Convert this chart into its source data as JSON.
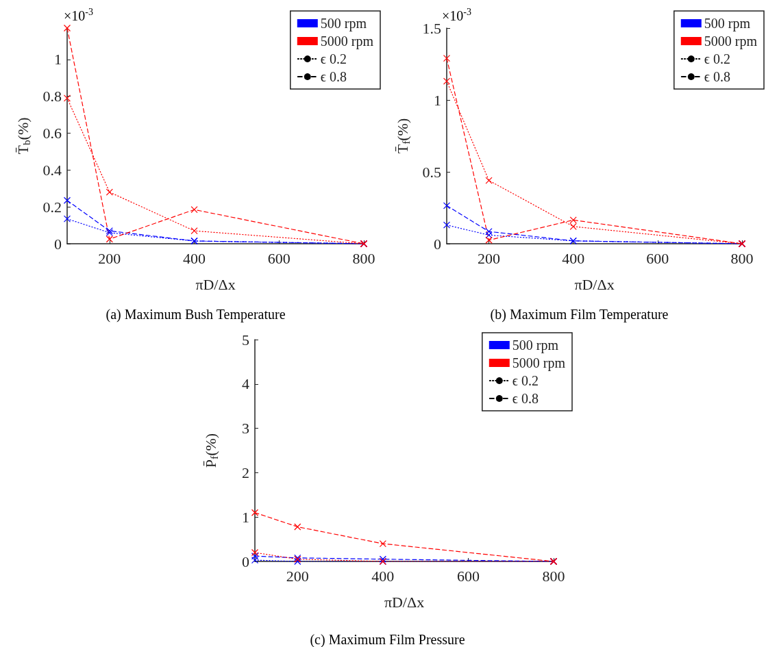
{
  "chart_data": [
    {
      "type": "line",
      "title": "(a) Maximum Bush Temperature",
      "xlabel": "πD/Δx",
      "ylabel": "T̄$_{b}$(%)",
      "annotations": [
        "×10$^{-3}$"
      ],
      "x": [
        100,
        200,
        400,
        800
      ],
      "xlim": [
        100,
        800
      ],
      "xticks": [
        200,
        400,
        600,
        800
      ],
      "ylim": [
        0,
        1.17
      ],
      "yticks": [
        0,
        0.2,
        0.4,
        0.6,
        0.8,
        1
      ],
      "grid": false,
      "legend": "top right",
      "series": [
        {
          "color": "#0000ff",
          "line_style": "dashed",
          "marker": "cross",
          "values": [
            0.235,
            0.07,
            0.015,
            0
          ]
        },
        {
          "color": "#0000ff",
          "line_style": "dotted",
          "marker": "cross",
          "values": [
            0.135,
            0.06,
            0.015,
            0
          ]
        },
        {
          "color": "#ff0000",
          "line_style": "dashed",
          "marker": "cross",
          "values": [
            1.17,
            0.025,
            0.185,
            0
          ]
        },
        {
          "color": "#ff0000",
          "line_style": "dotted",
          "marker": "cross",
          "values": [
            0.79,
            0.28,
            0.07,
            0
          ]
        },
        {
          "name": "500 rpm",
          "color": "#0000ff",
          "marker": "square",
          "values": [
            null,
            null,
            null,
            null
          ]
        },
        {
          "name": "5000 rpm",
          "color": "#ff0000",
          "marker": "square",
          "values": [
            null,
            null,
            null,
            null
          ]
        },
        {
          "name": "ϵ 0.2",
          "color": "#000000",
          "marker": "none",
          "line_style": "dotted",
          "values": [
            null,
            null,
            null,
            null
          ]
        },
        {
          "name": "ϵ 0.8",
          "color": "#000000",
          "marker": "none",
          "line_style": "dashed",
          "values": [
            null,
            null,
            null,
            null
          ]
        }
      ]
    },
    {
      "type": "line",
      "title": "(b) Maximum Film Temperature",
      "xlabel": "πD/Δx",
      "ylabel": "T̄$_{f}$(%)",
      "annotations": [
        "×10$^{-3}$"
      ],
      "x": [
        100,
        200,
        400,
        800
      ],
      "xlim": [
        100,
        800
      ],
      "xticks": [
        200,
        400,
        600,
        800
      ],
      "ylim": [
        0,
        1.5
      ],
      "yticks": [
        0,
        0.5,
        1,
        1.5
      ],
      "grid": false,
      "legend": "top right",
      "series": [
        {
          "color": "#0000ff",
          "line_style": "dashed",
          "marker": "cross",
          "values": [
            0.265,
            0.085,
            0.02,
            0
          ]
        },
        {
          "color": "#0000ff",
          "line_style": "dotted",
          "marker": "cross",
          "values": [
            0.13,
            0.06,
            0.02,
            0
          ]
        },
        {
          "color": "#ff0000",
          "line_style": "dashed",
          "marker": "cross",
          "values": [
            1.29,
            0.025,
            0.165,
            0
          ]
        },
        {
          "color": "#ff0000",
          "line_style": "dotted",
          "marker": "cross",
          "values": [
            1.13,
            0.44,
            0.12,
            0
          ]
        },
        {
          "name": "500 rpm",
          "color": "#0000ff",
          "marker": "square",
          "values": [
            null,
            null,
            null,
            null
          ]
        },
        {
          "name": "5000 rpm",
          "color": "#ff0000",
          "marker": "square",
          "values": [
            null,
            null,
            null,
            null
          ]
        },
        {
          "name": "ϵ 0.2",
          "color": "#000000",
          "marker": "none",
          "line_style": "dotted",
          "values": [
            null,
            null,
            null,
            null
          ]
        },
        {
          "name": "ϵ 0.8",
          "color": "#000000",
          "marker": "none",
          "line_style": "dashed",
          "values": [
            null,
            null,
            null,
            null
          ]
        }
      ]
    },
    {
      "type": "line",
      "title": "(c) Maximum Film Pressure",
      "xlabel": "πD/Δx",
      "ylabel": "P̄$_{f}$(%)",
      "x": [
        100,
        200,
        400,
        800
      ],
      "xlim": [
        100,
        800
      ],
      "xticks": [
        200,
        400,
        600,
        800
      ],
      "ylim": [
        0,
        5
      ],
      "yticks": [
        0,
        1,
        2,
        3,
        4,
        5
      ],
      "grid": false,
      "legend": "top right",
      "series": [
        {
          "color": "#0000ff",
          "line_style": "dashed",
          "marker": "cross",
          "values": [
            0.12,
            0.08,
            0.05,
            0
          ]
        },
        {
          "color": "#0000ff",
          "line_style": "dotted",
          "marker": "cross",
          "values": [
            0.03,
            0,
            0,
            0
          ]
        },
        {
          "color": "#ff0000",
          "line_style": "dashed",
          "marker": "cross",
          "values": [
            1.1,
            0.78,
            0.4,
            0
          ]
        },
        {
          "color": "#ff0000",
          "line_style": "dotted",
          "marker": "cross",
          "values": [
            0.2,
            0.05,
            0,
            0
          ]
        },
        {
          "name": "500 rpm",
          "color": "#0000ff",
          "marker": "square",
          "values": [
            null,
            null,
            null,
            null
          ]
        },
        {
          "name": "5000 rpm",
          "color": "#ff0000",
          "marker": "square",
          "values": [
            null,
            null,
            null,
            null
          ]
        },
        {
          "name": "ϵ 0.2",
          "color": "#000000",
          "marker": "none",
          "line_style": "dotted",
          "values": [
            null,
            null,
            null,
            null
          ]
        },
        {
          "name": "ϵ 0.8",
          "color": "#000000",
          "marker": "none",
          "line_style": "dashed",
          "values": [
            null,
            null,
            null,
            null
          ]
        }
      ]
    }
  ]
}
